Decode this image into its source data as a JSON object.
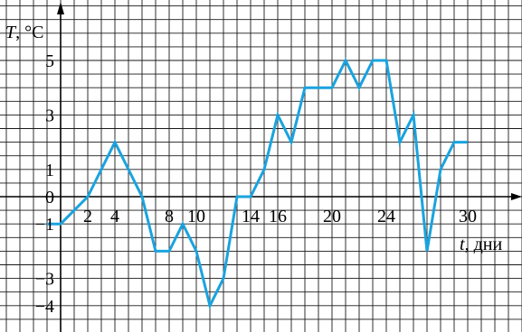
{
  "chart_data": {
    "type": "line",
    "xlabel": {
      "var": "t",
      "unit": ", дни"
    },
    "ylabel": {
      "var": "T",
      "unit": ", °C"
    },
    "xlim": [
      -1,
      33
    ],
    "ylim": [
      -4.7,
      6.5
    ],
    "grid": true,
    "x_ticks": [
      2,
      4,
      8,
      10,
      14,
      16,
      20,
      24,
      30
    ],
    "x_tick_labels": [
      "2",
      "4",
      "8",
      "10",
      "14",
      "16",
      "20",
      "24",
      "30"
    ],
    "y_ticks": [
      5,
      3,
      1,
      0,
      -1,
      -3,
      -4
    ],
    "y_tick_labels": [
      "5",
      "3",
      "1",
      "0",
      "−1",
      "−3",
      "−4"
    ],
    "series": [
      {
        "color": "#1aa3de",
        "points": [
          [
            -1,
            -1
          ],
          [
            0,
            -1
          ],
          [
            2,
            0
          ],
          [
            4,
            2
          ],
          [
            6,
            0
          ],
          [
            7,
            -2
          ],
          [
            8,
            -2
          ],
          [
            9,
            -1
          ],
          [
            10,
            -2
          ],
          [
            11,
            -4
          ],
          [
            12,
            -3
          ],
          [
            13,
            0
          ],
          [
            14,
            0
          ],
          [
            15,
            1
          ],
          [
            16,
            3
          ],
          [
            17,
            2
          ],
          [
            18,
            4
          ],
          [
            20,
            4
          ],
          [
            21,
            5
          ],
          [
            22,
            4
          ],
          [
            23,
            5
          ],
          [
            24,
            5
          ],
          [
            25,
            2
          ],
          [
            26,
            3
          ],
          [
            27,
            -2
          ],
          [
            28,
            1
          ],
          [
            29,
            2
          ],
          [
            30,
            2
          ]
        ]
      }
    ]
  }
}
